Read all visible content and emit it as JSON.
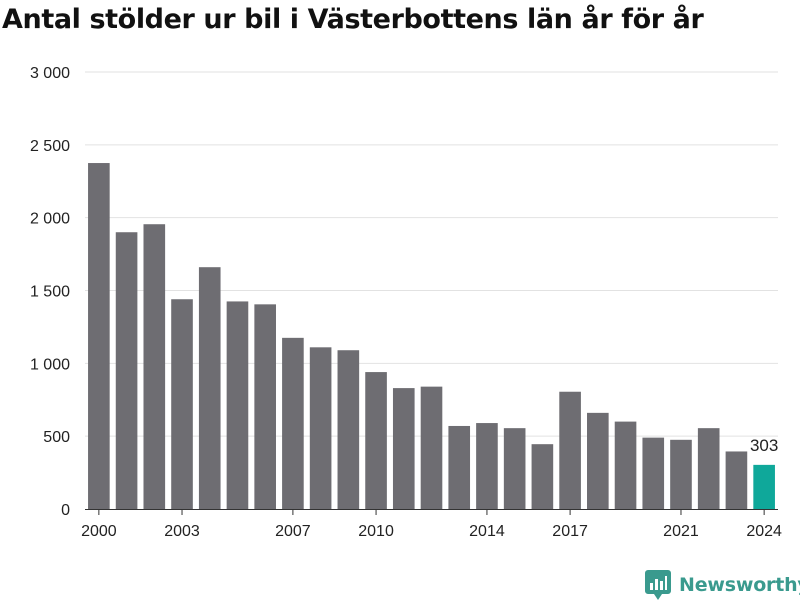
{
  "title": "Antal stölder ur bil i Västerbottens län år för år",
  "brand": {
    "name": "Newsworthy",
    "icon": "bar-chart-logo-icon",
    "color": "#3a9a8e"
  },
  "colors": {
    "bar": "#6e6d72",
    "highlight": "#0fa89a",
    "grid": "#e2e2e2",
    "axis": "#333333"
  },
  "chart_data": {
    "type": "bar",
    "title": "Antal stölder ur bil i Västerbottens län år för år",
    "xlabel": "",
    "ylabel": "",
    "categories": [
      "2000",
      "2001",
      "2002",
      "2003",
      "2004",
      "2005",
      "2006",
      "2007",
      "2008",
      "2009",
      "2010",
      "2011",
      "2012",
      "2013",
      "2014",
      "2015",
      "2016",
      "2017",
      "2018",
      "2019",
      "2020",
      "2021",
      "2022",
      "2023",
      "2024"
    ],
    "values": [
      2375,
      1900,
      1955,
      1440,
      1660,
      1425,
      1405,
      1175,
      1110,
      1090,
      940,
      830,
      840,
      570,
      590,
      555,
      445,
      805,
      660,
      600,
      490,
      475,
      555,
      395,
      303
    ],
    "highlight_index": 24,
    "data_labels": [
      {
        "index": 24,
        "text": "303"
      }
    ],
    "ylim": [
      0,
      3000
    ],
    "y_ticks": [
      0,
      500,
      1000,
      1500,
      2000,
      2500,
      3000
    ],
    "y_tick_labels": [
      "0",
      "500",
      "1 000",
      "1 500",
      "2 000",
      "2 500",
      "3 000"
    ],
    "x_tick_labels": [
      {
        "index": 0,
        "text": "2000"
      },
      {
        "index": 3,
        "text": "2003"
      },
      {
        "index": 7,
        "text": "2007"
      },
      {
        "index": 10,
        "text": "2010"
      },
      {
        "index": 14,
        "text": "2014"
      },
      {
        "index": 17,
        "text": "2017"
      },
      {
        "index": 21,
        "text": "2021"
      },
      {
        "index": 24,
        "text": "2024"
      }
    ],
    "grid": true,
    "legend": "none"
  }
}
